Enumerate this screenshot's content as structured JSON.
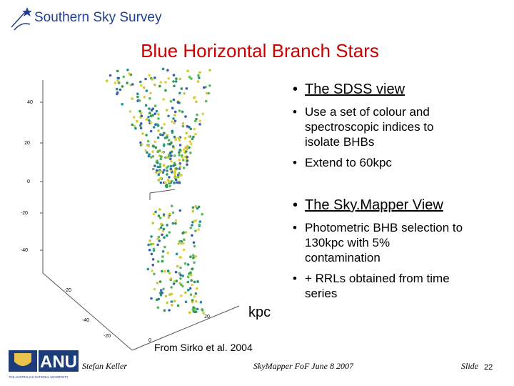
{
  "header": {
    "logo_text": "Southern Sky Survey",
    "title": "Blue Horizontal Branch Stars"
  },
  "figure": {
    "left_axis_labels": [
      "40",
      "20",
      "0",
      "-20",
      "-40"
    ],
    "bottom_axis_labels": [
      "-20",
      "-40",
      "-20",
      "0",
      "20"
    ],
    "unit": "kpc",
    "caption": "From Sirko et al. 2004"
  },
  "bullets": [
    {
      "text": "The SDSS view",
      "sub": [
        "Use a set of colour and spectroscopic indices to isolate BHBs",
        "Extend to 60kpc"
      ]
    },
    {
      "text": "The Sky.Mapper View",
      "sub": [
        "Photometric BHB selection to 130kpc with 5% contamination",
        "+ RRLs obtained from time series"
      ]
    }
  ],
  "footer": {
    "logo": "ANU",
    "university": "THE AUSTRALIAN NATIONAL UNIVERSITY",
    "author": "Stefan Keller",
    "event": "SkyMapper FoF June 8 2007",
    "slide_label": "Slide",
    "slide_number": "22"
  }
}
